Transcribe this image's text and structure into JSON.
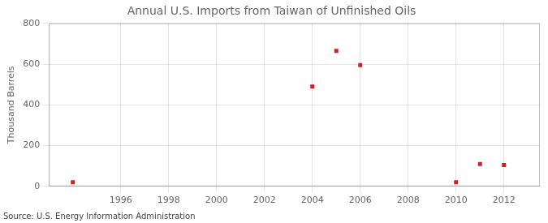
{
  "chart_data": {
    "type": "scatter",
    "title": "Annual U.S. Imports from Taiwan of Unfinished Oils",
    "ylabel": "Thousand Barrels",
    "annotations": [
      "Source: U.S. Energy Information Administration"
    ],
    "x": [
      1994,
      2004,
      2005,
      2006,
      2010,
      2011,
      2012
    ],
    "values": [
      20,
      490,
      665,
      595,
      20,
      110,
      105
    ],
    "color": "#cc2222",
    "marker": "square",
    "xlim": [
      1993,
      2013.5
    ],
    "ylim": [
      0,
      800
    ],
    "xticks": [
      1996,
      1998,
      2000,
      2002,
      2004,
      2006,
      2008,
      2010,
      2012
    ],
    "yticks": [
      0,
      200,
      400,
      600,
      800
    ],
    "grid": true
  }
}
